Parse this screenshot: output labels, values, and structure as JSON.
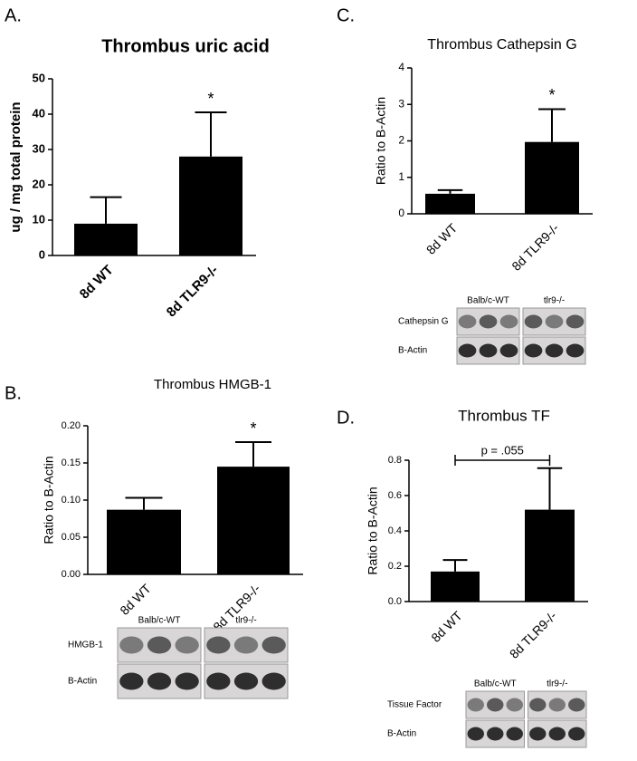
{
  "chart_data": [
    {
      "type": "bar",
      "panel": "A.",
      "title": "Thrombus uric acid",
      "y_label": "ug / mg total protein",
      "categories": [
        "8d WT",
        "8d TLR9-/-"
      ],
      "values": [
        9,
        28
      ],
      "errors": [
        7.5,
        12.5
      ],
      "color": "#000000",
      "ylim": [
        0,
        50
      ],
      "yticks": [
        0,
        10,
        20,
        30,
        40,
        50
      ],
      "annotations": [
        "*"
      ]
    },
    {
      "type": "bar",
      "panel": "C.",
      "title": "Thrombus Cathepsin G",
      "y_label": "Ratio to B-Actin",
      "categories": [
        "8d WT",
        "8d TLR9-/-"
      ],
      "values": [
        0.55,
        1.97
      ],
      "errors": [
        0.1,
        0.9
      ],
      "color": "#000000",
      "ylim": [
        0,
        4
      ],
      "yticks": [
        0,
        1,
        2,
        3,
        4
      ],
      "annotations": [
        "*"
      ],
      "blot": {
        "groups": [
          "Balb/c-WT",
          "tlr9-/-"
        ],
        "rows": [
          "Cathepsin G",
          "B-Actin"
        ]
      }
    },
    {
      "type": "bar",
      "panel": "B.",
      "title": "Thrombus HMGB-1",
      "y_label": "Ratio to B-Actin",
      "categories": [
        "8d WT",
        "8d TLR9-/-"
      ],
      "values": [
        0.087,
        0.145
      ],
      "errors": [
        0.016,
        0.033
      ],
      "color": "#000000",
      "ylim": [
        0,
        0.2
      ],
      "yticks": [
        {
          "value": 0,
          "label": "0.00"
        },
        0.05,
        {
          "value": 0.1,
          "label": "0.10"
        },
        0.15,
        {
          "value": 0.2,
          "label": "0.20"
        }
      ],
      "annotations": [
        "*"
      ],
      "blot": {
        "groups": [
          "Balb/c-WT",
          "tlr9-/-"
        ],
        "rows": [
          "HMGB-1",
          "B-Actin"
        ]
      }
    },
    {
      "type": "bar",
      "panel": "D.",
      "title": "Thrombus TF",
      "y_label": "Ratio to B-Actin",
      "categories": [
        "8d WT",
        "8d TLR9-/-"
      ],
      "values": [
        0.17,
        0.52
      ],
      "errors": [
        0.065,
        0.235
      ],
      "color": "#000000",
      "ylim": [
        0,
        0.8
      ],
      "yticks": [
        {
          "value": 0,
          "label": "0.0"
        },
        0.2,
        0.4,
        0.6,
        0.8
      ],
      "annotations": [
        "p = .055"
      ],
      "blot": {
        "groups": [
          "Balb/c-WT",
          "tlr9-/-"
        ],
        "rows": [
          "Tissue Factor",
          "B-Actin"
        ]
      }
    }
  ]
}
